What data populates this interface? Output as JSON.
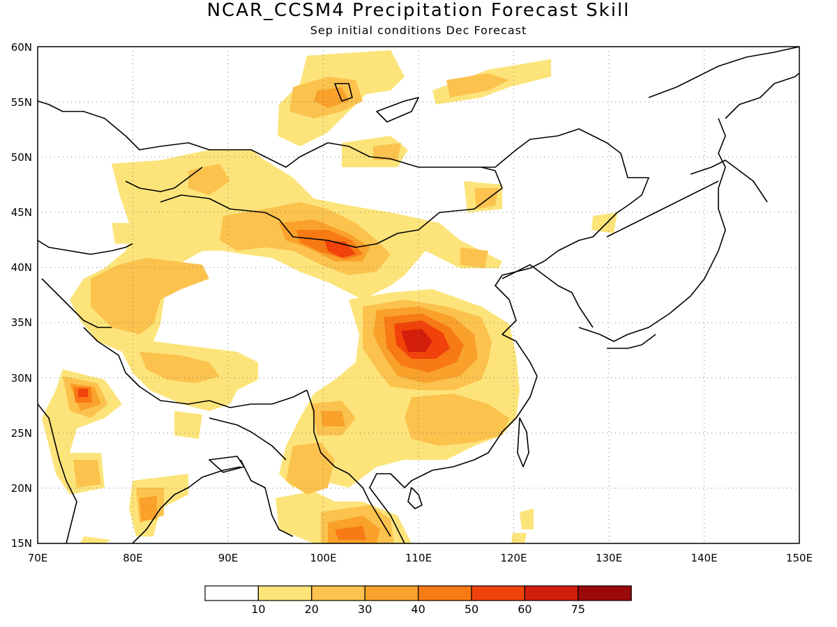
{
  "title": "NCAR_CCSM4 Precipitation Forecast Skill",
  "subtitle": "Sep initial conditions  Dec Forecast",
  "map": {
    "lon_range": [
      70,
      150
    ],
    "lat_range": [
      15,
      60
    ],
    "lon_ticks": [
      "70E",
      "80E",
      "90E",
      "100E",
      "110E",
      "120E",
      "130E",
      "140E",
      "150E"
    ],
    "lat_ticks": [
      "15N",
      "20N",
      "25N",
      "30N",
      "35N",
      "40N",
      "45N",
      "50N",
      "55N",
      "60N"
    ],
    "gridlines": "dotted"
  },
  "colorbar": {
    "labels": [
      "10",
      "20",
      "30",
      "40",
      "50",
      "60",
      "75"
    ],
    "colors": [
      "#ffffff",
      "#fde47a",
      "#fbc24e",
      "#f9a12a",
      "#f77a14",
      "#f0420a",
      "#d21e0a",
      "#9a0a0a"
    ]
  }
}
